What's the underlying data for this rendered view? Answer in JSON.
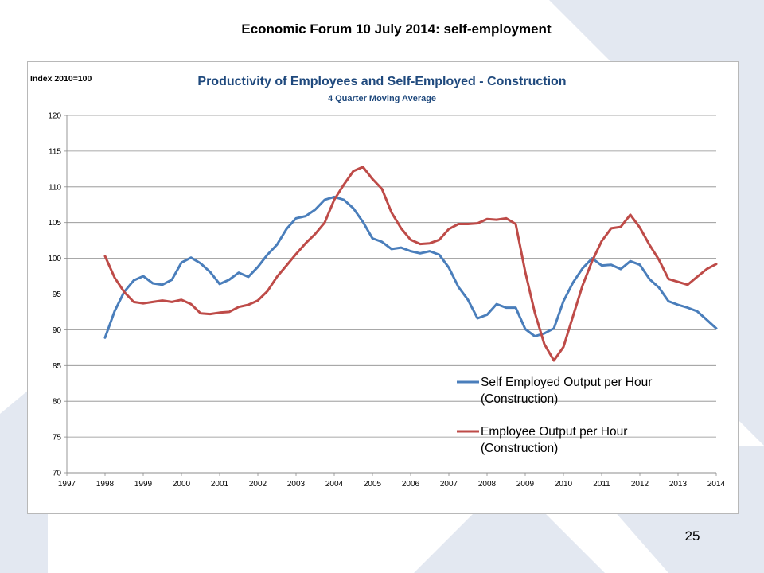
{
  "slide": {
    "title": "Economic Forum 10 July 2014: self-employment",
    "page_number": "25"
  },
  "colors": {
    "self_employed": "#4a7ebb",
    "employee": "#be4b48",
    "title_blue": "#1f497d",
    "background_shape": "#dfe5ef"
  },
  "chart_data": {
    "type": "line",
    "title": "Productivity of Employees and Self-Employed - Construction",
    "subtitle": "4 Quarter Moving Average",
    "ylabel": "Index 2010=100",
    "xlabel": "",
    "ylim": [
      70,
      120
    ],
    "yticks": [
      "70",
      "75",
      "80",
      "85",
      "90",
      "95",
      "100",
      "105",
      "110",
      "115",
      "120"
    ],
    "xlim": [
      1997,
      2014
    ],
    "xticks": [
      "1997",
      "1998",
      "1999",
      "2000",
      "2001",
      "2002",
      "2003",
      "2004",
      "2005",
      "2006",
      "2007",
      "2008",
      "2009",
      "2010",
      "2011",
      "2012",
      "2013",
      "2014"
    ],
    "grid": "horizontal",
    "legend_position": "bottom-right",
    "series": [
      {
        "name": "Self Employed Output per Hour (Construction)",
        "color": "#4a7ebb",
        "x": [
          1998,
          1998.25,
          1998.5,
          1998.75,
          1999,
          1999.25,
          1999.5,
          1999.75,
          2000,
          2000.25,
          2000.5,
          2000.75,
          2001,
          2001.25,
          2001.5,
          2001.75,
          2002,
          2002.25,
          2002.5,
          2002.75,
          2003,
          2003.25,
          2003.5,
          2003.75,
          2004,
          2004.25,
          2004.5,
          2004.75,
          2005,
          2005.25,
          2005.5,
          2005.75,
          2006,
          2006.25,
          2006.5,
          2006.75,
          2007,
          2007.25,
          2007.5,
          2007.75,
          2008,
          2008.25,
          2008.5,
          2008.75,
          2009,
          2009.25,
          2009.5,
          2009.75,
          2010,
          2010.25,
          2010.5,
          2010.75,
          2011,
          2011.25,
          2011.5,
          2011.75,
          2012,
          2012.25,
          2012.5,
          2012.75,
          2013,
          2013.25,
          2013.5,
          2013.75,
          2014
        ],
        "values": [
          88.9,
          92.6,
          95.3,
          96.9,
          97.5,
          96.5,
          96.3,
          97.0,
          99.4,
          100.1,
          99.3,
          98.1,
          96.4,
          97.0,
          98.0,
          97.4,
          98.8,
          100.5,
          101.9,
          104.1,
          105.6,
          105.9,
          106.8,
          108.2,
          108.6,
          108.2,
          107.0,
          105.1,
          102.8,
          102.3,
          101.3,
          101.5,
          101.0,
          100.7,
          101.0,
          100.5,
          98.7,
          96.0,
          94.2,
          91.6,
          92.1,
          93.6,
          93.1,
          93.1,
          90.1,
          89.1,
          89.5,
          90.2,
          94.0,
          96.6,
          98.6,
          100.0,
          99.0,
          99.1,
          98.5,
          99.6,
          99.1,
          97.1,
          95.9,
          94.0,
          93.5,
          93.1,
          92.6,
          91.4,
          90.2
        ]
      },
      {
        "name": "Employee Output per Hour (Construction)",
        "color": "#be4b48",
        "x": [
          1998,
          1998.25,
          1998.5,
          1998.75,
          1999,
          1999.25,
          1999.5,
          1999.75,
          2000,
          2000.25,
          2000.5,
          2000.75,
          2001,
          2001.25,
          2001.5,
          2001.75,
          2002,
          2002.25,
          2002.5,
          2002.75,
          2003,
          2003.25,
          2003.5,
          2003.75,
          2004,
          2004.25,
          2004.5,
          2004.75,
          2005,
          2005.25,
          2005.5,
          2005.75,
          2006,
          2006.25,
          2006.5,
          2006.75,
          2007,
          2007.25,
          2007.5,
          2007.75,
          2008,
          2008.25,
          2008.5,
          2008.75,
          2009,
          2009.25,
          2009.5,
          2009.75,
          2010,
          2010.25,
          2010.5,
          2010.75,
          2011,
          2011.25,
          2011.5,
          2011.75,
          2012,
          2012.25,
          2012.5,
          2012.75,
          2013,
          2013.25,
          2013.5,
          2013.75,
          2014
        ],
        "values": [
          100.3,
          97.3,
          95.3,
          93.9,
          93.7,
          93.9,
          94.1,
          93.9,
          94.2,
          93.6,
          92.3,
          92.2,
          92.4,
          92.5,
          93.2,
          93.5,
          94.1,
          95.4,
          97.4,
          99.0,
          100.6,
          102.1,
          103.4,
          105.0,
          108.2,
          110.3,
          112.2,
          112.8,
          111.1,
          109.7,
          106.4,
          104.2,
          102.6,
          102.0,
          102.1,
          102.6,
          104.1,
          104.8,
          104.8,
          104.9,
          105.5,
          105.4,
          105.6,
          104.8,
          98.1,
          92.4,
          88.0,
          85.7,
          87.6,
          91.9,
          96.2,
          99.6,
          102.4,
          104.2,
          104.4,
          106.1,
          104.3,
          101.9,
          99.8,
          97.1,
          96.7,
          96.3,
          97.4,
          98.5,
          99.2
        ]
      }
    ]
  }
}
